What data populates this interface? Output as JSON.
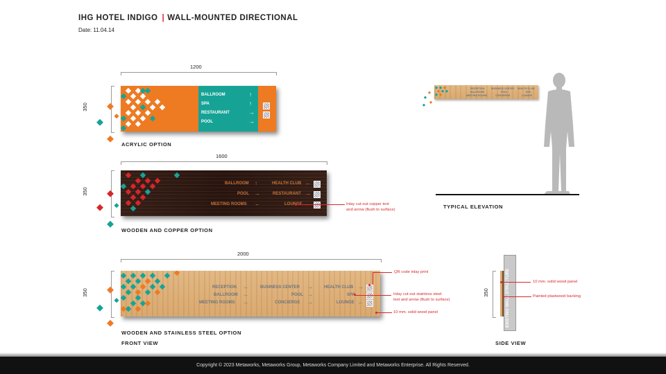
{
  "header": {
    "title_left": "IHG HOTEL INDIGO",
    "title_sep": "|",
    "title_right": "WALL-MOUNTED DIRECTIONAL",
    "date": "Date:  11.04.14"
  },
  "acrylic": {
    "width_dim": "1200",
    "height_dim": "350",
    "caption": "ACRYLIC OPTION",
    "items": [
      "BALLROOM",
      "SPA",
      "RESTAURANT",
      "POOL"
    ],
    "arrows": [
      "↑",
      "↑",
      "→",
      "→"
    ]
  },
  "wooden_copper": {
    "width_dim": "1600",
    "height_dim": "350",
    "caption": "WOODEN AND COPPER OPTION",
    "left_items": [
      "BALLROOM",
      "POOL",
      "MEETING ROOMS"
    ],
    "left_arrows": [
      "↑",
      "→",
      "←"
    ],
    "right_items": [
      "HEALTH CLUB",
      "RESTAURANT",
      "LOUNGE"
    ],
    "right_arrows": [
      "←",
      "→",
      "←"
    ],
    "note": "Inlay cut-out copper text\nand arrow (flush to surface)"
  },
  "wooden_steel": {
    "width_dim": "2000",
    "height_dim": "350",
    "caption": "WOODEN AND STAINLESS STEEL OPTION",
    "col1": [
      "RECEPTION",
      "BALLROOM",
      "MEETING ROOMS"
    ],
    "col1_arrows": [
      "→",
      "→",
      "→"
    ],
    "col2": [
      "BUSINESS CENTER",
      "POOL",
      "CONCIERGE"
    ],
    "col2_arrows": [
      "→",
      "→",
      "→"
    ],
    "col3": [
      "HEALTH CLUB",
      "SPA",
      "LOUNGE"
    ],
    "col3_arrows": [
      "→",
      "←",
      "←"
    ],
    "note_qr": "QR code inlay print",
    "note_inlay": "Inlay cut-out stainless steel\ntext and arrow (flush to surface)",
    "note_panel": "10 mm. solid wood panel",
    "front_view": "FRONT VIEW"
  },
  "elevation": {
    "caption": "TYPICAL ELEVATION",
    "mini_items": [
      "RECEPTION",
      "BALLROOM",
      "MEETING ROOMS",
      "BUSINESS CENTER",
      "POOL",
      "CONCIERGE",
      "HEALTH CLUB",
      "SPA",
      "LOUNGE"
    ]
  },
  "side_view": {
    "height_dim": "350",
    "wall_label": "EXISTING WALL STRUCTURE",
    "note_panel": "10 mm. solid wood panel",
    "note_backing": "Painted plastwood backing",
    "caption": "SIDE VIEW"
  },
  "footer": {
    "copyright": "Copyright © 2023 Metaworks, Metaworks Group, Metaworks Company Limited and Metaworks Enterprise. All Rights Reserved."
  },
  "colors": {
    "orange": "#ee7a22",
    "teal": "#16a396",
    "red": "#d8262b",
    "dark_wood": "#2f1912",
    "light_wood": "#deb07a"
  }
}
